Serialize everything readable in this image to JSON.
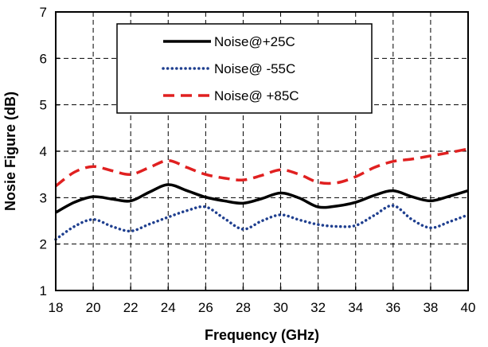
{
  "chart_data": {
    "type": "line",
    "title": "",
    "xlabel": "Frequency (GHz)",
    "ylabel": "Nosie Figure (dB)",
    "xlim": [
      18,
      40
    ],
    "ylim": [
      1,
      7
    ],
    "xticks": [
      18,
      20,
      22,
      24,
      26,
      28,
      30,
      32,
      34,
      36,
      38,
      40
    ],
    "yticks": [
      1,
      2,
      3,
      4,
      5,
      6,
      7
    ],
    "grid": true,
    "legend": "top-center",
    "series": [
      {
        "name": "Noise@+25C",
        "color": "#000000",
        "style": "solid",
        "x": [
          18,
          19,
          20,
          21,
          22,
          23,
          24,
          25,
          26,
          27,
          28,
          29,
          30,
          31,
          32,
          33,
          34,
          35,
          36,
          37,
          38,
          39,
          40
        ],
        "y": [
          2.68,
          2.9,
          3.02,
          2.97,
          2.93,
          3.12,
          3.28,
          3.15,
          3.01,
          2.93,
          2.88,
          2.98,
          3.1,
          2.99,
          2.8,
          2.82,
          2.9,
          3.05,
          3.15,
          3.02,
          2.93,
          3.03,
          3.15
        ]
      },
      {
        "name": "Noise@ -55C",
        "color": "#1f3f8f",
        "style": "dotted",
        "x": [
          18,
          19,
          20,
          21,
          22,
          23,
          24,
          25,
          26,
          27,
          28,
          29,
          30,
          31,
          32,
          33,
          34,
          35,
          36,
          37,
          38,
          39,
          40
        ],
        "y": [
          2.1,
          2.38,
          2.53,
          2.38,
          2.28,
          2.43,
          2.58,
          2.72,
          2.8,
          2.55,
          2.32,
          2.5,
          2.63,
          2.52,
          2.42,
          2.38,
          2.4,
          2.62,
          2.83,
          2.53,
          2.35,
          2.48,
          2.63
        ]
      },
      {
        "name": "Noise@ +85C",
        "color": "#e02020",
        "style": "dashed",
        "x": [
          18,
          19,
          20,
          21,
          22,
          23,
          24,
          25,
          26,
          27,
          28,
          29,
          30,
          31,
          32,
          33,
          34,
          35,
          36,
          37,
          38,
          39,
          40
        ],
        "y": [
          3.25,
          3.55,
          3.67,
          3.58,
          3.5,
          3.65,
          3.8,
          3.65,
          3.5,
          3.42,
          3.38,
          3.48,
          3.6,
          3.5,
          3.33,
          3.32,
          3.45,
          3.65,
          3.78,
          3.83,
          3.9,
          3.97,
          4.05
        ]
      }
    ]
  }
}
